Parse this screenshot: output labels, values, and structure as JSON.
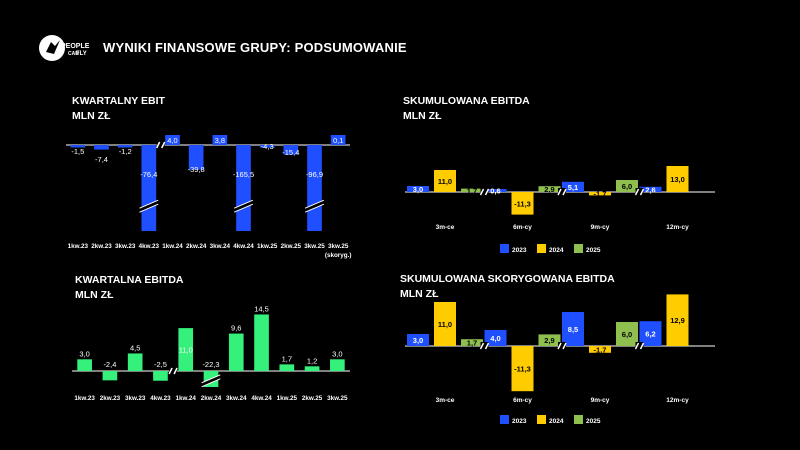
{
  "header": {
    "title": "WYNIKI FINANSOWE GRUPY: PODSUMOWANIE",
    "logo_text": [
      "PEOPLE",
      "CAN",
      "FLY"
    ]
  },
  "colors": {
    "blue": "#1f4fff",
    "yellow": "#ffcc00",
    "green": "#35f07a",
    "olive": "#8fbf4f"
  },
  "panels": {
    "ebit": {
      "title": "KWARTALNY EBIT",
      "unit": "MLN ZŁ"
    },
    "ebitda": {
      "title": "KWARTALNA EBITDA",
      "unit": "MLN ZŁ"
    },
    "cum": {
      "title": "SKUMULOWANA EBITDA",
      "unit": "MLN ZŁ"
    },
    "cumadj": {
      "title": "SKUMULOWANA SKORYGOWANA EBITDA",
      "unit": "MLN ZŁ"
    }
  },
  "chart_data": [
    {
      "id": "ebit",
      "type": "bar",
      "title": "KWARTALNY EBIT",
      "ylabel": "MLN ZŁ",
      "categories": [
        "1kw.23",
        "2kw.23",
        "3kw.23",
        "4kw.23",
        "1kw.24",
        "2kw.24",
        "3kw.24",
        "4kw.24",
        "1kw.25",
        "2kw.25",
        "3kw.25",
        "3kw.25"
      ],
      "category_notes": [
        "",
        "",
        "",
        "",
        "",
        "",
        "",
        "",
        "",
        "",
        "",
        "(skoryg.)"
      ],
      "values": [
        -1.5,
        -7.4,
        -1.2,
        -76.4,
        4.0,
        -39.8,
        3.8,
        -165.5,
        -4.3,
        -15.4,
        -96.9,
        0.1
      ],
      "labels": [
        "-1,5",
        "-7,4",
        "-1,2",
        "-76,4",
        "4,0",
        "-39,8",
        "3,8",
        "-165,5",
        "-4,3",
        "-15,4",
        "-96,9",
        "0,1"
      ],
      "axis_breaks_after": [
        4
      ],
      "bar_breaks": [
        3,
        7,
        10
      ]
    },
    {
      "id": "ebitda",
      "type": "bar",
      "title": "KWARTALNA EBITDA",
      "ylabel": "MLN ZŁ",
      "categories": [
        "1kw.23",
        "2kw.23",
        "3kw.23",
        "4kw.23",
        "1kw.24",
        "2kw.24",
        "3kw.24",
        "4kw.24",
        "1kw.25",
        "2kw.25",
        "3kw.25"
      ],
      "values": [
        3.0,
        -2.4,
        4.5,
        -2.5,
        11.0,
        -22.3,
        9.6,
        14.5,
        1.7,
        1.2,
        3.0
      ],
      "labels": [
        "3,0",
        "-2,4",
        "4,5",
        "-2,5",
        "11,0",
        "-22,3",
        "9,6",
        "14,5",
        "1,7",
        "1,2",
        "3,0"
      ],
      "axis_breaks_after": [
        3
      ],
      "bar_breaks": [
        5
      ]
    },
    {
      "id": "cum",
      "type": "bar",
      "title": "SKUMULOWANA EBITDA",
      "ylabel": "MLN ZŁ",
      "categories": [
        "3m-ce",
        "6m-cy",
        "9m-cy",
        "12m-cy"
      ],
      "series": [
        {
          "name": "2023",
          "values": [
            3.0,
            0.6,
            5.1,
            2.6
          ],
          "labels": [
            "3,0",
            "0,6",
            "5,1",
            "2,6"
          ]
        },
        {
          "name": "2024",
          "values": [
            11.0,
            -11.3,
            -1.7,
            13.0
          ],
          "labels": [
            "11,0",
            "-11,3",
            "-1,7",
            "13,0"
          ]
        },
        {
          "name": "2025",
          "values": [
            1.7,
            2.9,
            6.0,
            null
          ],
          "labels": [
            "1,7",
            "2,9",
            "6,0",
            ""
          ]
        }
      ]
    },
    {
      "id": "cumadj",
      "type": "bar",
      "title": "SKUMULOWANA SKORYGOWANA EBITDA",
      "ylabel": "MLN ZŁ",
      "categories": [
        "3m-ce",
        "6m-cy",
        "9m-cy",
        "12m-cy"
      ],
      "series": [
        {
          "name": "2023",
          "values": [
            3.0,
            4.0,
            8.5,
            6.2
          ],
          "labels": [
            "3,0",
            "4,0",
            "8,5",
            "6,2"
          ]
        },
        {
          "name": "2024",
          "values": [
            11.0,
            -11.3,
            -1.7,
            12.9
          ],
          "labels": [
            "11,0",
            "-11,3",
            "-1,7",
            "12,9"
          ]
        },
        {
          "name": "2025",
          "values": [
            1.7,
            2.9,
            6.0,
            null
          ],
          "labels": [
            "1,7",
            "2,9",
            "6,0",
            ""
          ]
        }
      ]
    }
  ]
}
